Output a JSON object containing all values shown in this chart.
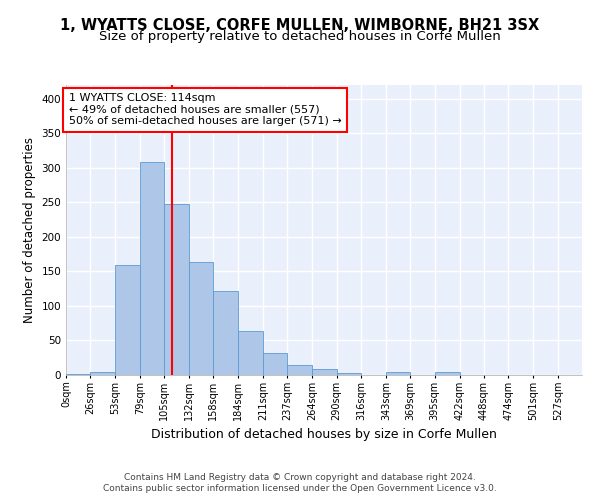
{
  "title_line1": "1, WYATTS CLOSE, CORFE MULLEN, WIMBORNE, BH21 3SX",
  "title_line2": "Size of property relative to detached houses in Corfe Mullen",
  "xlabel": "Distribution of detached houses by size in Corfe Mullen",
  "ylabel": "Number of detached properties",
  "footer_line1": "Contains HM Land Registry data © Crown copyright and database right 2024.",
  "footer_line2": "Contains public sector information licensed under the Open Government Licence v3.0.",
  "bin_labels": [
    "0sqm",
    "26sqm",
    "53sqm",
    "79sqm",
    "105sqm",
    "132sqm",
    "158sqm",
    "184sqm",
    "211sqm",
    "237sqm",
    "264sqm",
    "290sqm",
    "316sqm",
    "343sqm",
    "369sqm",
    "395sqm",
    "422sqm",
    "448sqm",
    "474sqm",
    "501sqm",
    "527sqm"
  ],
  "bin_edges": [
    0,
    26,
    53,
    79,
    105,
    132,
    158,
    184,
    211,
    237,
    264,
    290,
    316,
    343,
    369,
    395,
    422,
    448,
    474,
    501,
    527
  ],
  "bar_heights": [
    2,
    5,
    160,
    308,
    247,
    163,
    121,
    64,
    32,
    15,
    9,
    3,
    0,
    4,
    0,
    4,
    0,
    0,
    0,
    0
  ],
  "bar_color": "#aec6e8",
  "bar_edge_color": "#5b9bd5",
  "vline_x": 114,
  "vline_color": "red",
  "annotation_line1": "1 WYATTS CLOSE: 114sqm",
  "annotation_line2": "← 49% of detached houses are smaller (557)",
  "annotation_line3": "50% of semi-detached houses are larger (571) →",
  "annotation_box_color": "red",
  "annotation_text_color": "black",
  "annotation_box_facecolor": "white",
  "ylim": [
    0,
    420
  ],
  "yticks": [
    0,
    50,
    100,
    150,
    200,
    250,
    300,
    350,
    400
  ],
  "background_color": "#eaf0fb",
  "grid_color": "white",
  "title_fontsize": 10.5,
  "subtitle_fontsize": 9.5,
  "ylabel_fontsize": 8.5,
  "xlabel_fontsize": 9,
  "tick_fontsize": 7,
  "annotation_fontsize": 8,
  "footer_fontsize": 6.5
}
